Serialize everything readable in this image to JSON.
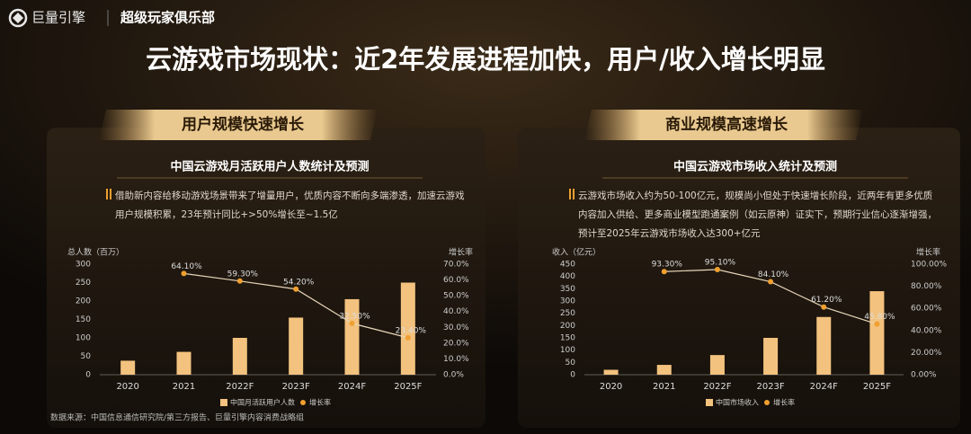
{
  "header": {
    "logo": "巨量引擎",
    "club": "超级玩家俱乐部"
  },
  "title": "云游戏市场现状：近2年发展进程加快，用户/收入增长明显",
  "sections": [
    {
      "heading": "用户规模快速增长",
      "description": [
        "借助新内容给移动游戏场景带来了增量用户，优质内容不断向多端渗透，加速云游戏",
        "用户规模积累，23年预计同比+>50%增长至~1.5亿"
      ]
    },
    {
      "heading": "商业规模高速增长",
      "description": [
        "云游戏市场收入约为50-100亿元，规模尚小但处于快速增长阶段，近两年有更多优质",
        "内容加入供给、更多商业模型跑通案例（如云原神）证实下，预期行业信心逐渐增强，",
        "预计至2025年云游戏市场收入达300+亿元"
      ]
    }
  ],
  "source": "数据来源：中国信息通信研究院/第三方报告、巨量引擎内容消费战略组",
  "chart_data": [
    {
      "type": "bar",
      "title": "中国云游戏月活跃用户人数统计及预测",
      "y_label": "总人数（百万）",
      "y2_label": "增长率",
      "categories": [
        "2020",
        "2021",
        "2022F",
        "2023F",
        "2024F",
        "2025F"
      ],
      "series": [
        {
          "name": "中国月活跃用户人数",
          "type": "bar",
          "color": "#f3c27e",
          "values": [
            38,
            62,
            100,
            155,
            205,
            250
          ]
        },
        {
          "name": "增长率",
          "type": "line",
          "axis": "y2",
          "color": "#f0a030",
          "values": [
            null,
            64.1,
            59.3,
            54.2,
            32.5,
            23.4
          ],
          "value_labels": [
            null,
            "64.10%",
            "59.30%",
            "54.20%",
            "32.50%",
            "23.40%"
          ]
        }
      ],
      "ylim": [
        0,
        300
      ],
      "yticks": [
        0,
        50,
        100,
        150,
        200,
        250,
        300
      ],
      "y2lim": [
        0,
        70
      ],
      "y2ticks": [
        {
          "value": 0,
          "label": "0.0%"
        },
        {
          "value": 10,
          "label": "10.0%"
        },
        {
          "value": 20,
          "label": "20.0%"
        },
        {
          "value": 30,
          "label": "30.0%"
        },
        {
          "value": 40,
          "label": "40.0%"
        },
        {
          "value": 50,
          "label": "50.0%"
        },
        {
          "value": 60,
          "label": "60.0%"
        },
        {
          "value": 70,
          "label": "70.0%"
        }
      ],
      "grid": false
    },
    {
      "type": "bar",
      "title": "中国云游戏市场收入统计及预测",
      "y_label": "收入（亿元）",
      "y2_label": "增长率",
      "categories": [
        "2020",
        "2021",
        "2022F",
        "2023F",
        "2024F",
        "2025F"
      ],
      "series": [
        {
          "name": "中国市场收入",
          "type": "bar",
          "color": "#f3c27e",
          "values": [
            20,
            40,
            80,
            150,
            235,
            340
          ]
        },
        {
          "name": "增长率",
          "type": "line",
          "axis": "y2",
          "color": "#f0a030",
          "values": [
            null,
            93.3,
            95.1,
            84.1,
            61.2,
            45.8
          ],
          "value_labels": [
            null,
            "93.30%",
            "95.10%",
            "84.10%",
            "61.20%",
            "45.80%"
          ]
        }
      ],
      "ylim": [
        0,
        450
      ],
      "yticks": [
        0,
        50,
        100,
        150,
        200,
        250,
        300,
        350,
        400,
        450
      ],
      "y2lim": [
        0,
        100
      ],
      "y2ticks": [
        {
          "value": 0,
          "label": "0.00%"
        },
        {
          "value": 20,
          "label": "20.00%"
        },
        {
          "value": 40,
          "label": "40.00%"
        },
        {
          "value": 60,
          "label": "60.00%"
        },
        {
          "value": 80,
          "label": "80.00%"
        },
        {
          "value": 100,
          "label": "100.00%"
        }
      ],
      "grid": false
    }
  ]
}
